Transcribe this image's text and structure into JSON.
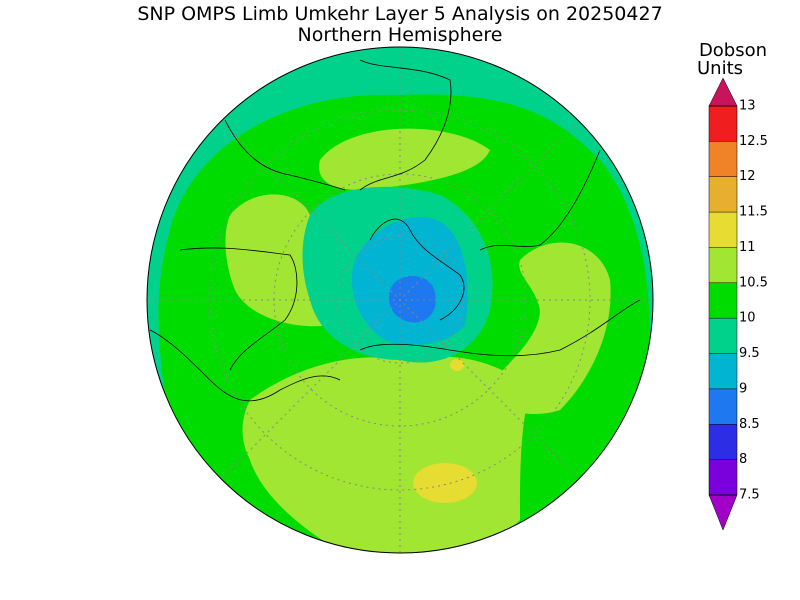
{
  "header": {
    "title": "SNP OMPS Limb Umkehr Layer 5 Analysis on 20250427",
    "subtitle": "Northern Hemisphere"
  },
  "colorbar": {
    "label": [
      "Dobson",
      "Units"
    ],
    "ticks": [
      7.5,
      8,
      8.5,
      9,
      9.5,
      10,
      10.5,
      11,
      11.5,
      12,
      12.5,
      13
    ],
    "colors": [
      "#7a00dc",
      "#2d2de6",
      "#1e78f0",
      "#00b4d2",
      "#00d28c",
      "#00dc00",
      "#a0e632",
      "#e6dc32",
      "#e6af2d",
      "#f08228",
      "#f01e1e"
    ],
    "under_color": "#a000c8",
    "over_color": "#c8145a"
  }
}
